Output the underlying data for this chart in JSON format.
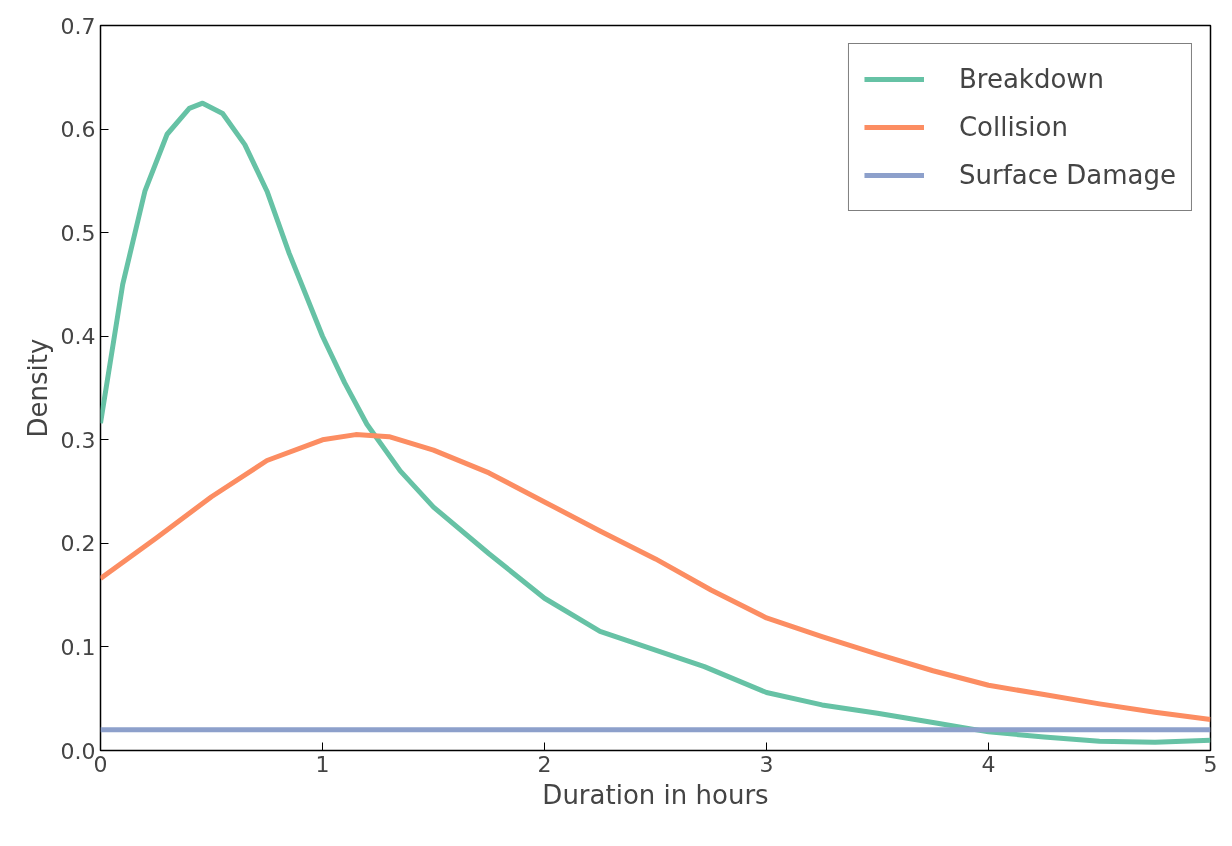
{
  "chart_data": {
    "type": "line",
    "xlabel": "Duration in hours",
    "ylabel": "Density",
    "xlim": [
      0,
      5
    ],
    "ylim": [
      0,
      0.7
    ],
    "xticks": [
      0,
      1,
      2,
      3,
      4,
      5
    ],
    "yticks": [
      {
        "value": 0,
        "label": "0.0"
      },
      0.1,
      0.2,
      0.3,
      0.4,
      0.5,
      0.6,
      0.7
    ],
    "grid": false,
    "legend": "top right",
    "line_style": "solid",
    "marker": "none",
    "series": [
      {
        "name": "Breakdown",
        "color": "#66c2a5",
        "x": [
          0,
          0.1,
          0.2,
          0.3,
          0.4,
          0.46,
          0.55,
          0.65,
          0.75,
          0.85,
          1.0,
          1.1,
          1.2,
          1.35,
          1.5,
          1.75,
          2.0,
          2.25,
          2.5,
          2.72,
          3.0,
          3.25,
          3.5,
          3.75,
          4.0,
          4.25,
          4.5,
          4.75,
          5.0
        ],
        "values": [
          0.316,
          0.45,
          0.54,
          0.595,
          0.62,
          0.625,
          0.615,
          0.585,
          0.54,
          0.48,
          0.4,
          0.355,
          0.315,
          0.27,
          0.235,
          0.19,
          0.147,
          0.115,
          0.097,
          0.081,
          0.056,
          0.044,
          0.036,
          0.027,
          0.018,
          0.013,
          0.009,
          0.008,
          0.01
        ]
      },
      {
        "name": "Collision",
        "color": "#fc8d62",
        "x": [
          0,
          0.25,
          0.5,
          0.75,
          1.0,
          1.15,
          1.3,
          1.5,
          1.75,
          2.0,
          2.25,
          2.5,
          2.75,
          3.0,
          3.25,
          3.5,
          3.75,
          4.0,
          4.25,
          4.5,
          4.75,
          5.0
        ],
        "values": [
          0.166,
          0.205,
          0.245,
          0.28,
          0.3,
          0.305,
          0.303,
          0.29,
          0.268,
          0.24,
          0.212,
          0.185,
          0.155,
          0.128,
          0.11,
          0.093,
          0.077,
          0.063,
          0.054,
          0.045,
          0.037,
          0.03
        ]
      },
      {
        "name": "Surface Damage",
        "color": "#8da0cb",
        "x": [
          0,
          5
        ],
        "values": [
          0.02,
          0.02
        ]
      }
    ]
  }
}
